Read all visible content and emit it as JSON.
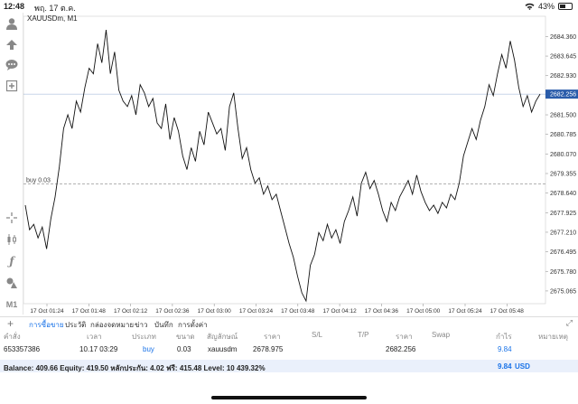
{
  "statusbar": {
    "time": "12:48",
    "date": "พฤ. 17 ต.ค.",
    "battery": "43%"
  },
  "toolbar": {
    "items": [
      {
        "icon": "person-icon"
      },
      {
        "icon": "trade-icon"
      },
      {
        "icon": "chat-icon"
      },
      {
        "icon": "add-icon"
      },
      {
        "icon": "crosshair-icon"
      },
      {
        "icon": "candles-icon"
      },
      {
        "icon": "function-icon"
      },
      {
        "icon": "objects-icon"
      }
    ],
    "timeframe": "M1"
  },
  "chart": {
    "symbol_label": "XAUUSDm, M1",
    "buy_label": "buy 0.03",
    "current_price": "2682.256",
    "colors": {
      "line": "#111111",
      "grid": "#e8e8e8",
      "price_tag": "#2a5caa",
      "buy_line": "#999999"
    }
  },
  "chart_data": {
    "type": "line",
    "y_ticks": [
      "2684.360",
      "2683.645",
      "2682.930",
      "2682.256",
      "2681.500",
      "2680.785",
      "2680.070",
      "2679.355",
      "2678.640",
      "2677.925",
      "2677.210",
      "2676.495",
      "2675.780",
      "2675.065"
    ],
    "ylim": [
      2674.6,
      2685.1
    ],
    "x_ticks": [
      "17 Oct 01:24",
      "17 Oct 01:48",
      "17 Oct 02:12",
      "17 Oct 02:36",
      "17 Oct 03:00",
      "17 Oct 03:24",
      "17 Oct 03:48",
      "17 Oct 04:12",
      "17 Oct 04:36",
      "17 Oct 05:00",
      "17 Oct 05:24",
      "17 Oct 05:48"
    ],
    "buy_price": 2678.975,
    "current_price": 2682.256,
    "series": [
      {
        "values": [
          2678.2,
          2677.3,
          2677.5,
          2677.0,
          2677.4,
          2676.6,
          2677.7,
          2678.5,
          2679.6,
          2681.0,
          2681.5,
          2681.0,
          2682.0,
          2681.6,
          2682.5,
          2683.2,
          2683.0,
          2684.1,
          2683.4,
          2684.6,
          2683.0,
          2683.8,
          2682.4,
          2682.0,
          2681.8,
          2682.2,
          2681.5,
          2682.6,
          2682.3,
          2681.8,
          2682.1,
          2681.2,
          2681.0,
          2681.9,
          2680.6,
          2681.4,
          2680.9,
          2680.0,
          2679.5,
          2680.3,
          2679.8,
          2680.9,
          2680.4,
          2681.6,
          2681.2,
          2680.8,
          2681.0,
          2680.2,
          2681.8,
          2682.3,
          2681.0,
          2679.9,
          2680.3,
          2679.5,
          2679.0,
          2679.2,
          2678.6,
          2678.9,
          2678.4,
          2678.6,
          2678.0,
          2677.4,
          2676.8,
          2676.3,
          2675.6,
          2675.0,
          2674.7,
          2676.0,
          2676.4,
          2677.2,
          2676.9,
          2677.5,
          2677.0,
          2677.3,
          2676.8,
          2677.6,
          2678.0,
          2678.5,
          2677.8,
          2679.0,
          2679.4,
          2678.8,
          2679.1,
          2678.6,
          2678.0,
          2677.6,
          2678.3,
          2678.0,
          2678.5,
          2678.8,
          2679.1,
          2678.6,
          2679.3,
          2678.7,
          2678.3,
          2678.0,
          2678.2,
          2677.9,
          2678.3,
          2678.1,
          2678.6,
          2678.4,
          2679.0,
          2680.0,
          2680.5,
          2681.0,
          2680.6,
          2681.3,
          2681.8,
          2682.6,
          2682.2,
          2683.0,
          2683.7,
          2683.2,
          2684.2,
          2683.5,
          2682.5,
          2681.8,
          2682.2,
          2681.6,
          2682.0,
          2682.256
        ]
      }
    ]
  },
  "tabs": {
    "items": [
      "การซื้อขาย",
      "ประวัติ",
      "กล่องจดหมาย",
      "ข่าว",
      "บันทึก",
      "การตั้งค่า"
    ],
    "active_index": 0
  },
  "table": {
    "headers": [
      "คำสั่ง",
      "เวลา",
      "ประเภท",
      "ขนาด",
      "สัญลักษณ์",
      "ราคา",
      "S/L",
      "T/P",
      "ราคา",
      "Swap",
      "กำไร",
      "หมายเหตุ"
    ],
    "rows": [
      [
        "653357386",
        "10.17 03:29",
        "buy",
        "0.03",
        "xauusdm",
        "2678.975",
        "",
        "",
        "2682.256",
        "",
        "9.84",
        ""
      ]
    ]
  },
  "balance": {
    "text": "Balance: 409.66 Equity: 419.50 หลักประกัน: 4.02 ฟรี: 415.48 Level: 10 439.32%",
    "profit": "9.84",
    "currency": "USD"
  }
}
